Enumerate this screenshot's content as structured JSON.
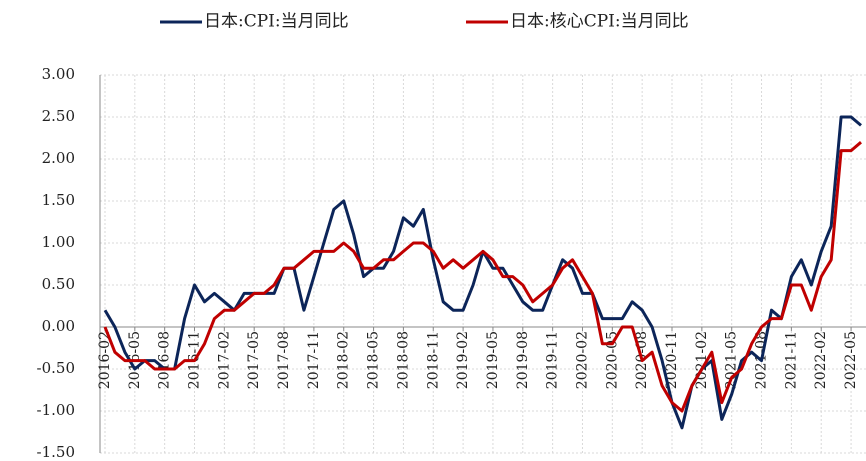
{
  "chart_data": {
    "type": "line",
    "categories": [
      "2016-02",
      null,
      null,
      "2016-05",
      null,
      null,
      "2016-08",
      null,
      null,
      "2016-11",
      null,
      null,
      "2017-02",
      null,
      null,
      "2017-05",
      null,
      null,
      "2017-08",
      null,
      null,
      "2017-11",
      null,
      null,
      "2018-02",
      null,
      null,
      "2018-05",
      null,
      null,
      "2018-08",
      null,
      null,
      "2018-11",
      null,
      null,
      "2019-02",
      null,
      null,
      "2019-05",
      null,
      null,
      "2019-08",
      null,
      null,
      "2019-11",
      null,
      null,
      "2020-02",
      null,
      null,
      "2020-05",
      null,
      null,
      "2020-08",
      null,
      null,
      "2020-11",
      null,
      null,
      "2021-02",
      null,
      null,
      "2021-05",
      null,
      null,
      "2021-08",
      null,
      null,
      "2021-11",
      null,
      null,
      "2022-02",
      null,
      null,
      "2022-05",
      null
    ],
    "series": [
      {
        "name": "日本:CPI:当月同比",
        "color": "#0c2559",
        "values": [
          0.2,
          0.0,
          -0.3,
          -0.5,
          -0.4,
          -0.4,
          -0.5,
          -0.5,
          0.1,
          0.5,
          0.3,
          0.4,
          0.3,
          0.2,
          0.4,
          0.4,
          0.4,
          0.4,
          0.7,
          0.7,
          0.2,
          0.6,
          1.0,
          1.4,
          1.5,
          1.1,
          0.6,
          0.7,
          0.7,
          0.9,
          1.3,
          1.2,
          1.4,
          0.8,
          0.3,
          0.2,
          0.2,
          0.5,
          0.9,
          0.7,
          0.7,
          0.5,
          0.3,
          0.2,
          0.2,
          0.5,
          0.8,
          0.7,
          0.4,
          0.4,
          0.1,
          0.1,
          0.1,
          0.3,
          0.2,
          0.0,
          -0.4,
          -0.9,
          -1.2,
          -0.7,
          -0.5,
          -0.4,
          -1.1,
          -0.8,
          -0.4,
          -0.3,
          -0.4,
          0.2,
          0.1,
          0.6,
          0.8,
          0.5,
          0.9,
          1.2,
          2.5,
          2.5,
          2.4
        ]
      },
      {
        "name": "日本:核心CPI:当月同比",
        "color": "#c00000",
        "values": [
          0.0,
          -0.3,
          -0.4,
          -0.4,
          -0.4,
          -0.5,
          -0.5,
          -0.5,
          -0.4,
          -0.4,
          -0.2,
          0.1,
          0.2,
          0.2,
          0.3,
          0.4,
          0.4,
          0.5,
          0.7,
          0.7,
          0.8,
          0.9,
          0.9,
          0.9,
          1.0,
          0.9,
          0.7,
          0.7,
          0.8,
          0.8,
          0.9,
          1.0,
          1.0,
          0.9,
          0.7,
          0.8,
          0.7,
          0.8,
          0.9,
          0.8,
          0.6,
          0.6,
          0.5,
          0.3,
          0.4,
          0.5,
          0.7,
          0.8,
          0.6,
          0.4,
          -0.2,
          -0.2,
          0.0,
          0.0,
          -0.4,
          -0.3,
          -0.7,
          -0.9,
          -1.0,
          -0.7,
          -0.5,
          -0.3,
          -0.9,
          -0.6,
          -0.5,
          -0.2,
          0.0,
          0.1,
          0.1,
          0.5,
          0.5,
          0.2,
          0.6,
          0.8,
          2.1,
          2.1,
          2.2
        ]
      }
    ],
    "ylim": [
      -1.5,
      3.0
    ],
    "yticks": [
      {
        "value": 3.0,
        "label": "3.00"
      },
      {
        "value": 2.5,
        "label": "2.50"
      },
      {
        "value": 2.0,
        "label": "2.00"
      },
      {
        "value": 1.5,
        "label": "1.50"
      },
      {
        "value": 1.0,
        "label": "1.00"
      },
      {
        "value": 0.5,
        "label": "0.50"
      },
      {
        "value": 0.0,
        "label": "0.00"
      },
      {
        "value": -0.5,
        "label": "-0.50"
      },
      {
        "value": -1.0,
        "label": "-1.00"
      },
      {
        "value": -1.5,
        "label": "-1.50"
      }
    ],
    "grid": true,
    "legend": "top"
  }
}
